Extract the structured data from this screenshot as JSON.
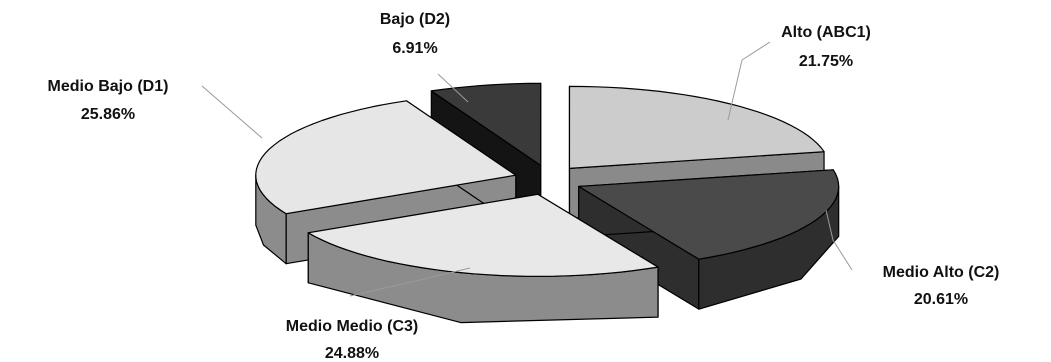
{
  "chart_data": {
    "type": "pie",
    "title": "",
    "style": "3d-exploded",
    "legend": "none",
    "slices": [
      {
        "name": "Alto (ABC1)",
        "value": 21.75,
        "value_label": "21.75%",
        "top_color": "#cccccc",
        "side_color": "#8a8a8a"
      },
      {
        "name": "Medio Alto (C2)",
        "value": 20.61,
        "value_label": "20.61%",
        "top_color": "#4a4a4a",
        "side_color": "#2e2e2e"
      },
      {
        "name": "Medio Medio (C3)",
        "value": 24.88,
        "value_label": "24.88%",
        "top_color": "#e8e8e8",
        "side_color": "#8c8c8c"
      },
      {
        "name": "Medio Bajo (D1)",
        "value": 25.86,
        "value_label": "25.86%",
        "top_color": "#e6e6e6",
        "side_color": "#8c8c8c"
      },
      {
        "name": "Bajo (D2)",
        "value": 6.91,
        "value_label": "6.91%",
        "top_color": "#3a3a3a",
        "side_color": "#141414"
      }
    ]
  }
}
